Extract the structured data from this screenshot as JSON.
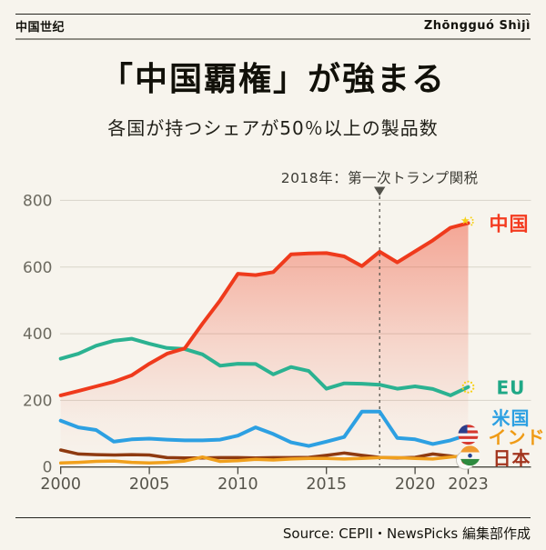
{
  "header": {
    "left": "中国世纪",
    "right": "Zhōngguó Shìjì"
  },
  "title": "「中国覇権」が強まる",
  "subtitle": "各国が持つシェアが50％以上の製品数",
  "annotation": {
    "text": "2018年：第一次トランプ関税",
    "year": 2018
  },
  "footer": {
    "source": "Source: CEPII・NewsPicks 編集部作成"
  },
  "colors": {
    "background": "#f7f4ed",
    "gridline": "#d8d5ca",
    "axis": "#494840",
    "y_tick_label": "#6c6a60",
    "x_tick_label": "#56544b",
    "annotation_text": "#3c3b34",
    "dashed_line": "#56554e"
  },
  "chart_data": {
    "type": "line",
    "title": "各国が持つシェアが50％以上の製品数",
    "xlabel": "",
    "ylabel": "",
    "x": [
      2000,
      2001,
      2002,
      2003,
      2004,
      2005,
      2006,
      2007,
      2008,
      2009,
      2010,
      2011,
      2012,
      2013,
      2014,
      2015,
      2016,
      2017,
      2018,
      2019,
      2020,
      2021,
      2022,
      2023
    ],
    "x_tick_labels": [
      "2000",
      "2005",
      "2010",
      "2015",
      "2020",
      "2023"
    ],
    "x_ticks": [
      2000,
      2005,
      2010,
      2015,
      2020,
      2023
    ],
    "y_ticks": [
      0,
      200,
      400,
      600,
      800
    ],
    "ylim": [
      0,
      800
    ],
    "xlim": [
      2000,
      2023
    ],
    "grid": true,
    "legend_position": "right-end",
    "series": [
      {
        "id": "china",
        "name": "中国",
        "color": "#ef3a1c",
        "label_color": "#f43b20",
        "flag": "china",
        "area": true,
        "values": [
          215,
          228,
          242,
          256,
          275,
          310,
          340,
          356,
          430,
          500,
          580,
          576,
          585,
          638,
          641,
          642,
          632,
          603,
          646,
          614,
          647,
          680,
          718,
          732
        ]
      },
      {
        "id": "eu",
        "name": "EU",
        "color": "#2bb291",
        "label_color": "#1fa886",
        "flag": "eu",
        "values": [
          325,
          340,
          364,
          379,
          385,
          370,
          357,
          354,
          338,
          304,
          310,
          309,
          278,
          300,
          288,
          235,
          251,
          250,
          247,
          235,
          242,
          234,
          215,
          240
        ]
      },
      {
        "id": "us",
        "name": "米国",
        "color": "#2da0e2",
        "label_color": "#2da0e2",
        "flag": "us",
        "values": [
          139,
          119,
          111,
          76,
          83,
          85,
          82,
          80,
          80,
          82,
          94,
          119,
          99,
          74,
          63,
          76,
          90,
          166,
          166,
          87,
          83,
          69,
          80,
          97
        ]
      },
      {
        "id": "india",
        "name": "インド",
        "color": "#f0a01d",
        "label_color": "#ef9b16",
        "flag": "india",
        "values": [
          12,
          14,
          17,
          18,
          14,
          12,
          14,
          18,
          30,
          17,
          19,
          23,
          21,
          24,
          26,
          26,
          24,
          26,
          28,
          28,
          26,
          24,
          30,
          34
        ]
      },
      {
        "id": "japan",
        "name": "日本",
        "color": "#8e3a10",
        "label_color": "#a2341d",
        "flag": "japan",
        "values": [
          51,
          39,
          37,
          36,
          37,
          36,
          28,
          27,
          27,
          28,
          28,
          27,
          28,
          28,
          29,
          35,
          42,
          35,
          29,
          27,
          29,
          39,
          33,
          26
        ]
      }
    ]
  }
}
